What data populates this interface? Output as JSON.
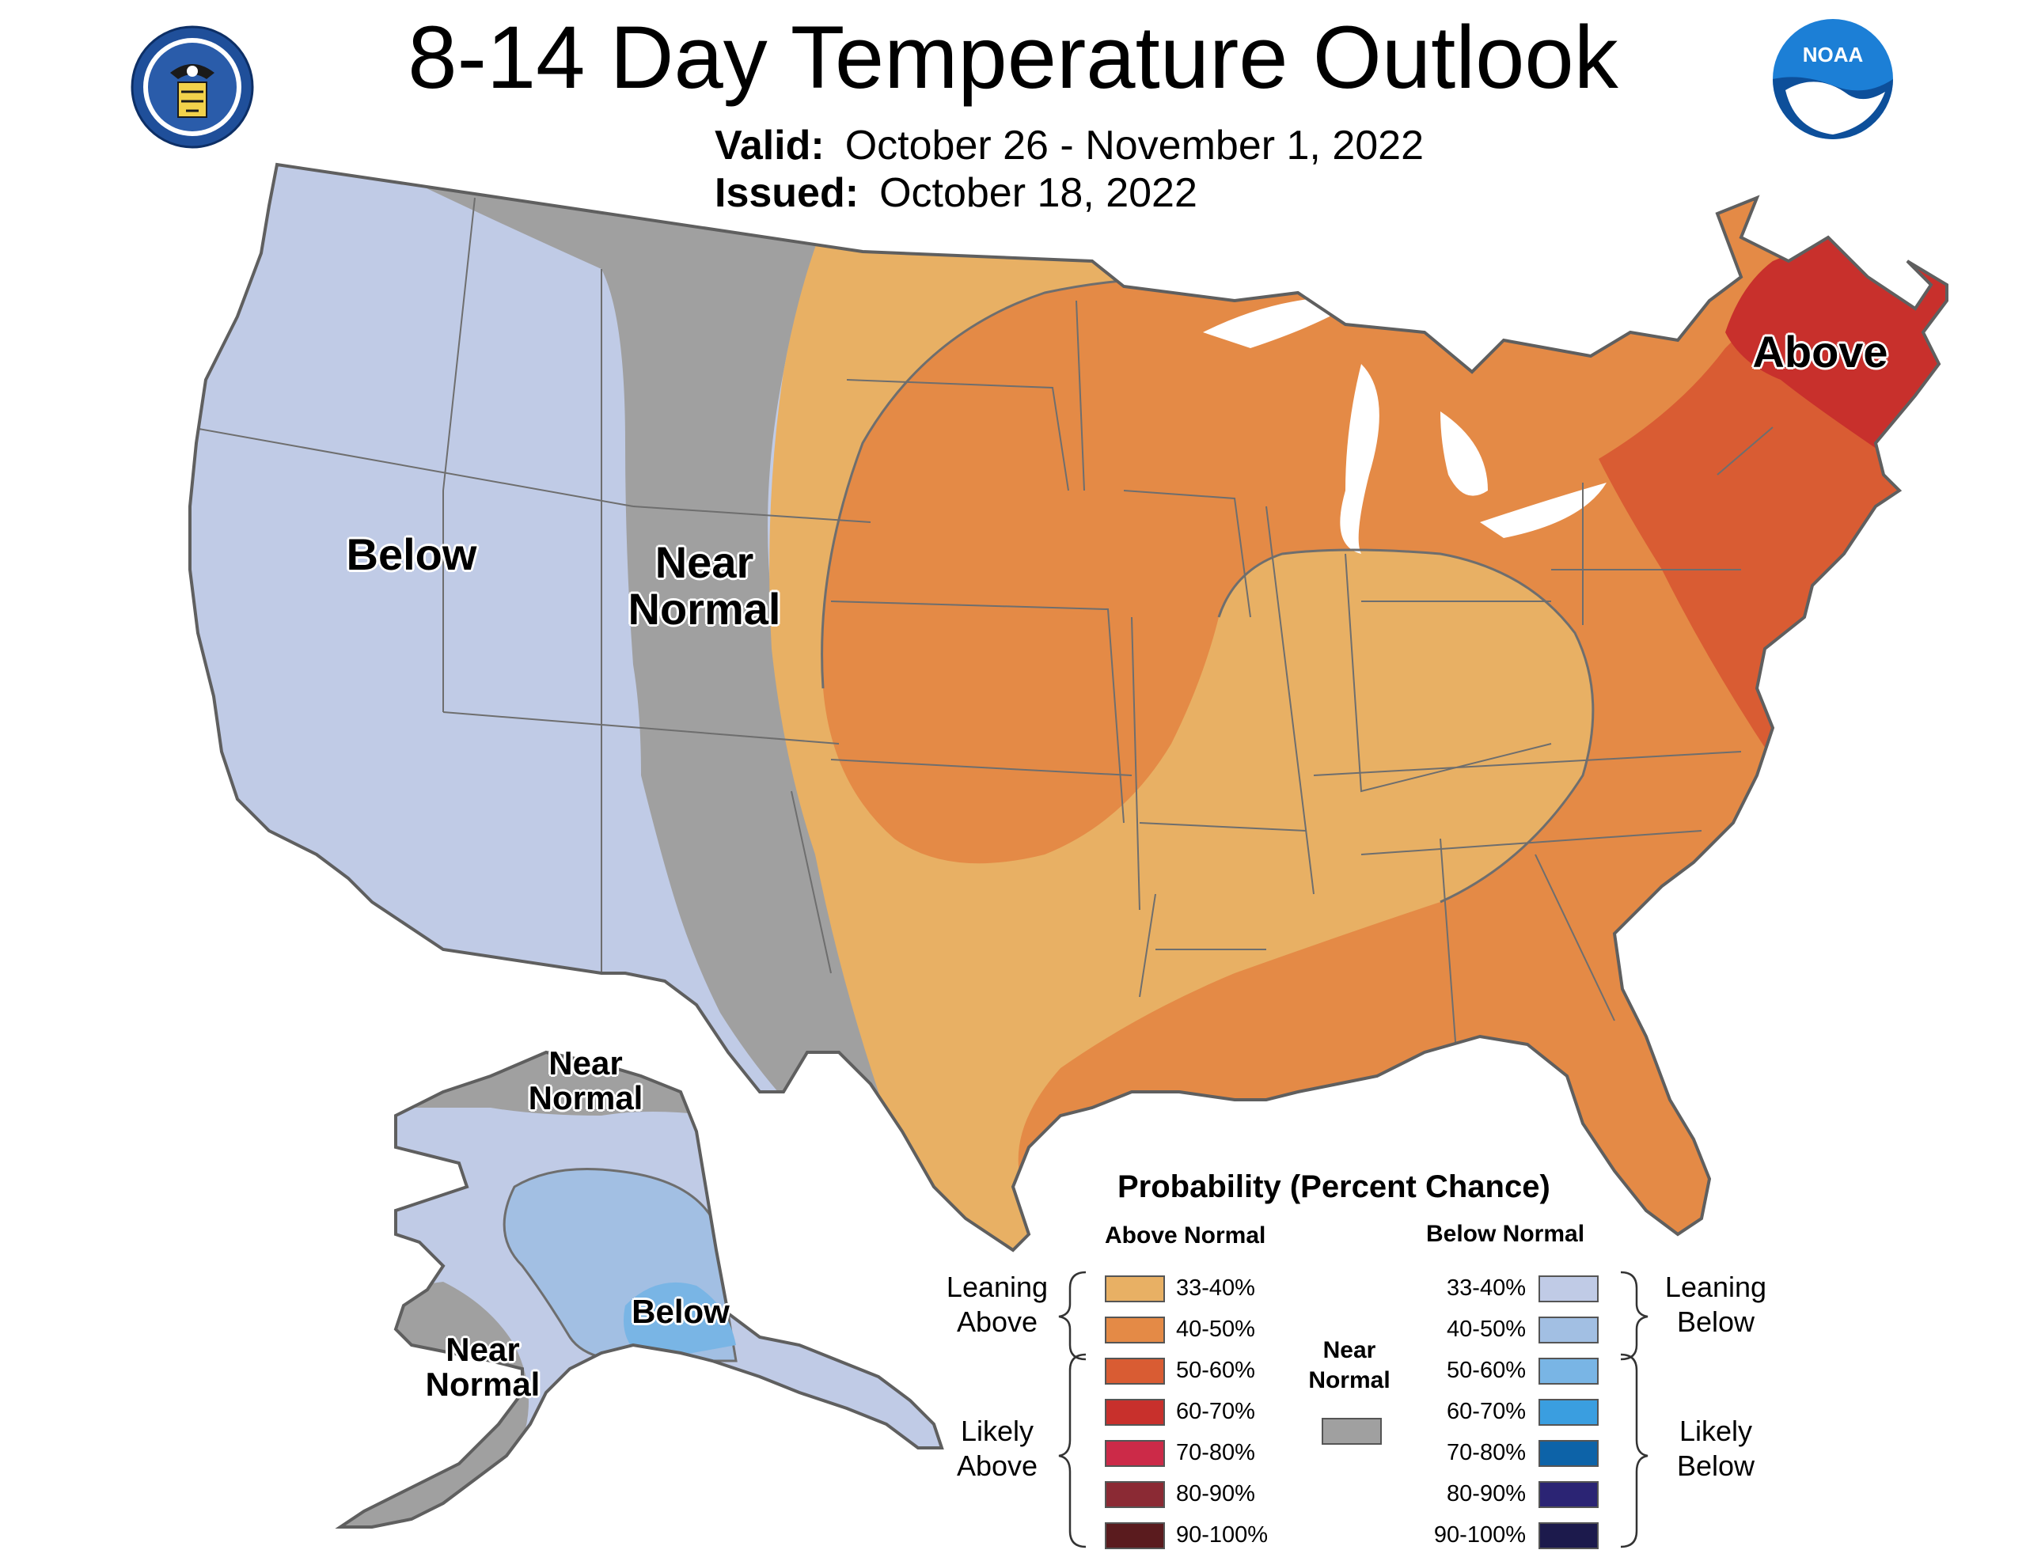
{
  "header": {
    "title": "8-14 Day Temperature Outlook",
    "valid_label": "Valid:",
    "valid_value": "October 26 - November 1, 2022",
    "issued_label": "Issued:",
    "issued_value": "October 18, 2022"
  },
  "logos": {
    "doc": "Department of Commerce seal",
    "noaa": "NOAA"
  },
  "colors": {
    "near_normal": "#a0a0a0",
    "below_lean": "#c0cbe6",
    "below_40": "#a2bfe3",
    "below_50": "#79b5e5",
    "above_lean": "#e8b064",
    "above_40": "#e48a46",
    "above_50": "#d95c33",
    "above_60": "#c8302c",
    "border": "#5f5f5f",
    "water": "#ffffff"
  },
  "map_labels": {
    "below_west": "Below",
    "near_normal_plains_1": "Near",
    "near_normal_plains_2": "Normal",
    "above_ne": "Above",
    "ak_near_north_1": "Near",
    "ak_near_north_2": "Normal",
    "ak_near_south_1": "Near",
    "ak_near_south_2": "Normal",
    "ak_below": "Below"
  },
  "legend": {
    "title": "Probability (Percent Chance)",
    "above_header": "Above Normal",
    "below_header": "Below Normal",
    "near_header_1": "Near",
    "near_header_2": "Normal",
    "leaning_above_1": "Leaning",
    "leaning_above_2": "Above",
    "likely_above_1": "Likely",
    "likely_above_2": "Above",
    "leaning_below_1": "Leaning",
    "leaning_below_2": "Below",
    "likely_below_1": "Likely",
    "likely_below_2": "Below",
    "above_rows": [
      {
        "label": "33-40%",
        "color": "#e8b064"
      },
      {
        "label": "40-50%",
        "color": "#e48a46"
      },
      {
        "label": "50-60%",
        "color": "#d95c33"
      },
      {
        "label": "60-70%",
        "color": "#c8302c"
      },
      {
        "label": "70-80%",
        "color": "#cc2a48"
      },
      {
        "label": "80-90%",
        "color": "#8b2a34"
      },
      {
        "label": "90-100%",
        "color": "#5a1b1e"
      }
    ],
    "below_rows": [
      {
        "label": "33-40%",
        "color": "#c0cbe6"
      },
      {
        "label": "40-50%",
        "color": "#a2bfe3"
      },
      {
        "label": "50-60%",
        "color": "#79b5e5"
      },
      {
        "label": "60-70%",
        "color": "#3a9ee0"
      },
      {
        "label": "70-80%",
        "color": "#0d63a8"
      },
      {
        "label": "80-90%",
        "color": "#2b2474"
      },
      {
        "label": "90-100%",
        "color": "#1c1a4c"
      }
    ],
    "near_color": "#a0a0a0"
  }
}
